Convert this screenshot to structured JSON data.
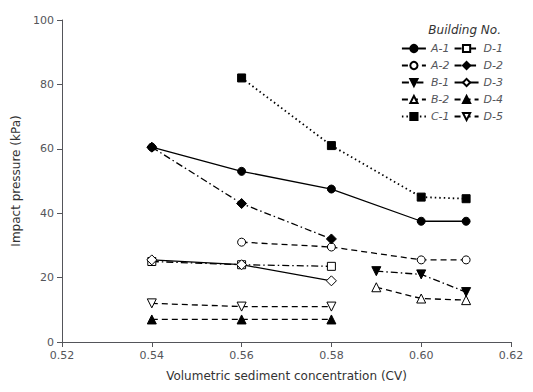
{
  "chart_data": {
    "type": "line",
    "title": "Building No.",
    "xlabel": "Volumetric sediment concentration (CV)",
    "ylabel": "Impact pressure (kPa)",
    "xlim": [
      0.52,
      0.62
    ],
    "ylim": [
      0,
      100
    ],
    "xticks": [
      0.52,
      0.54,
      0.56,
      0.58,
      {
        "value": 0.6,
        "label": "0.60"
      },
      0.62
    ],
    "yticks": [
      0,
      20,
      40,
      60,
      80,
      100
    ],
    "grid": false,
    "legend": "upper right",
    "series": [
      {
        "name": "A-1",
        "color": "#000000",
        "marker": "circle-filled",
        "line_style": "solid",
        "x": [
          0.54,
          0.56,
          0.58,
          0.6,
          0.61
        ],
        "values": [
          60.5,
          53.0,
          47.5,
          37.5,
          37.5
        ]
      },
      {
        "name": "A-2",
        "color": "#000000",
        "marker": "circle-open",
        "line_style": "dashed",
        "x": [
          0.56,
          0.58,
          0.6,
          0.61
        ],
        "values": [
          31.0,
          29.5,
          25.5,
          25.5
        ]
      },
      {
        "name": "B-1",
        "color": "#000000",
        "marker": "triangledown-filled",
        "line_style": "dashdot",
        "x": [
          0.59,
          0.6,
          0.61
        ],
        "values": [
          22.0,
          21.0,
          15.5
        ]
      },
      {
        "name": "B-2",
        "color": "#000000",
        "marker": "triangle-open",
        "line_style": "dashed",
        "x": [
          0.59,
          0.6,
          0.61
        ],
        "values": [
          17.0,
          13.5,
          13.0
        ]
      },
      {
        "name": "C-1",
        "color": "#000000",
        "marker": "square-filled",
        "line_style": "dotted",
        "x": [
          0.56,
          0.58,
          0.6,
          0.61
        ],
        "values": [
          82.0,
          61.0,
          45.0,
          44.5
        ]
      },
      {
        "name": "D-1",
        "color": "#000000",
        "marker": "square-open",
        "line_style": "dashdot",
        "x": [
          0.54,
          0.56,
          0.58
        ],
        "values": [
          25.0,
          24.0,
          23.5
        ]
      },
      {
        "name": "D-2",
        "color": "#000000",
        "marker": "diamond-filled",
        "line_style": "dashdot",
        "x": [
          0.54,
          0.56,
          0.58
        ],
        "values": [
          60.5,
          43.0,
          32.0
        ]
      },
      {
        "name": "D-3",
        "color": "#000000",
        "marker": "diamond-open",
        "line_style": "solid",
        "x": [
          0.54,
          0.56,
          0.58
        ],
        "values": [
          25.5,
          24.0,
          19.0
        ]
      },
      {
        "name": "D-4",
        "color": "#000000",
        "marker": "triangle-filled",
        "line_style": "dashed",
        "x": [
          0.54,
          0.56,
          0.58
        ],
        "values": [
          7.0,
          7.0,
          7.0
        ]
      },
      {
        "name": "D-5",
        "color": "#000000",
        "marker": "triangledown-open",
        "line_style": "dashed",
        "x": [
          0.54,
          0.56,
          0.58
        ],
        "values": [
          12.0,
          11.0,
          11.0
        ]
      }
    ]
  }
}
